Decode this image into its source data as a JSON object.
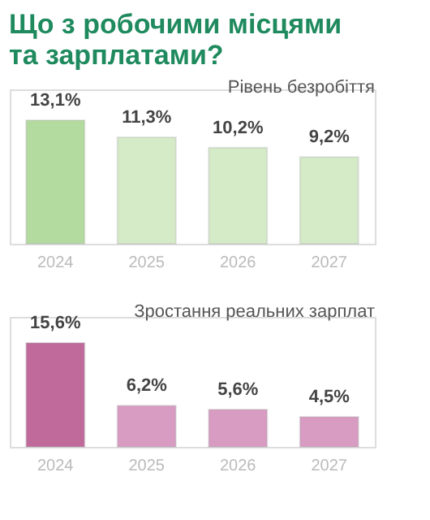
{
  "chart_data": [
    {
      "type": "bar",
      "title": "Що з робочими місцями та зарплатами?",
      "subtitle": "Рівень безробіття",
      "categories": [
        "2024",
        "2025",
        "2026",
        "2027"
      ],
      "values": [
        13.1,
        11.3,
        10.2,
        9.2
      ],
      "value_labels": [
        "13,1%",
        "11,3%",
        "10,2%",
        "9,2%"
      ],
      "colors": [
        "#b3dba0",
        "#d5ebc8",
        "#d5ebc8",
        "#d5ebc8"
      ]
    },
    {
      "type": "bar",
      "subtitle": "Зростання реальних зарплат",
      "categories": [
        "2024",
        "2025",
        "2026",
        "2027"
      ],
      "values": [
        15.6,
        6.2,
        5.6,
        4.5
      ],
      "value_labels": [
        "15,6%",
        "6,2%",
        "5,6%",
        "4,5%"
      ],
      "colors": [
        "#c06a9c",
        "#d89bc2",
        "#d89bc2",
        "#d89bc2"
      ]
    }
  ]
}
